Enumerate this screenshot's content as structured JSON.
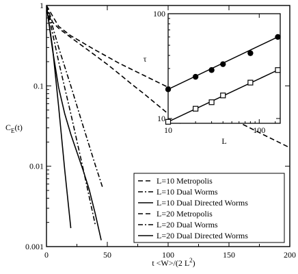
{
  "chart_data": [
    {
      "type": "line",
      "title": "",
      "xlabel_main": "t <W>/(2 L",
      "xlabel_sup": "2",
      "xlabel_tail": ")",
      "ylabel_main": "C",
      "ylabel_sub": "E",
      "ylabel_tail": "(t)",
      "xlim": [
        0,
        200
      ],
      "ylim": [
        0.001,
        1
      ],
      "yscale": "log",
      "xticks": [
        0,
        50,
        100,
        150,
        200
      ],
      "xtick_labels": [
        "0",
        "50",
        "100",
        "150",
        "200"
      ],
      "yticks": [
        0.001,
        0.01,
        0.1,
        1
      ],
      "ytick_labels": [
        "0.001",
        "0.01",
        "0.1",
        "1"
      ],
      "legend_position": "bottom-right",
      "series": [
        {
          "name": "L=10 Metropolis",
          "style": "dashed",
          "x": [
            0,
            5,
            10,
            20,
            30,
            40,
            50,
            60,
            70,
            80,
            90,
            100,
            110
          ],
          "y": [
            1.0,
            0.62,
            0.52,
            0.4,
            0.31,
            0.24,
            0.185,
            0.14,
            0.105,
            0.08,
            0.06,
            0.045,
            0.034
          ]
        },
        {
          "name": "L=10 Dual Worms",
          "style": "dashdot",
          "x": [
            0,
            5,
            10,
            20,
            30,
            40,
            46
          ],
          "y": [
            1.0,
            0.55,
            0.3,
            0.1,
            0.032,
            0.0105,
            0.0055
          ]
        },
        {
          "name": "L=10 Dual Directed Worms",
          "style": "solid",
          "x": [
            0,
            5,
            10,
            15,
            20
          ],
          "y": [
            1.0,
            0.3,
            0.055,
            0.009,
            0.0017
          ]
        },
        {
          "name": "L=20 Metropolis",
          "style": "dashed",
          "x": [
            0,
            10,
            20,
            40,
            60,
            80,
            100,
            120,
            140,
            160,
            180,
            200
          ],
          "y": [
            1.0,
            0.55,
            0.42,
            0.28,
            0.19,
            0.135,
            0.096,
            0.068,
            0.048,
            0.034,
            0.024,
            0.017
          ]
        },
        {
          "name": "L=20 Dual Worms",
          "style": "dashdot",
          "x": [
            0,
            5,
            10,
            20,
            30,
            40
          ],
          "y": [
            1.0,
            0.45,
            0.2,
            0.045,
            0.0095,
            0.0019
          ]
        },
        {
          "name": "L=20 Dual Directed Worms",
          "style": "solid",
          "x": [
            0,
            5,
            10,
            15,
            20,
            25,
            30,
            35,
            40,
            45
          ],
          "y": [
            1.0,
            0.28,
            0.095,
            0.045,
            0.025,
            0.015,
            0.009,
            0.0052,
            0.0026,
            0.0012
          ]
        }
      ]
    },
    {
      "type": "scatter",
      "title": "",
      "xlabel": "L",
      "ylabel": "τ",
      "xscale": "log",
      "yscale": "log",
      "xlim": [
        10,
        170
      ],
      "ylim": [
        9,
        100
      ],
      "xticks": [
        10,
        100
      ],
      "xtick_labels": [
        "10",
        "100"
      ],
      "yticks": [
        10,
        100
      ],
      "ytick_labels": [
        "10",
        "100"
      ],
      "series": [
        {
          "marker": "filled-circle",
          "x": [
            10,
            20,
            30,
            40,
            80,
            160
          ],
          "y": [
            19,
            25,
            29,
            33,
            42,
            60
          ]
        },
        {
          "marker": "open-square",
          "x": [
            10,
            20,
            30,
            40,
            80,
            160
          ],
          "y": [
            9.3,
            12.4,
            14.3,
            16.6,
            22,
            29
          ]
        }
      ]
    }
  ]
}
